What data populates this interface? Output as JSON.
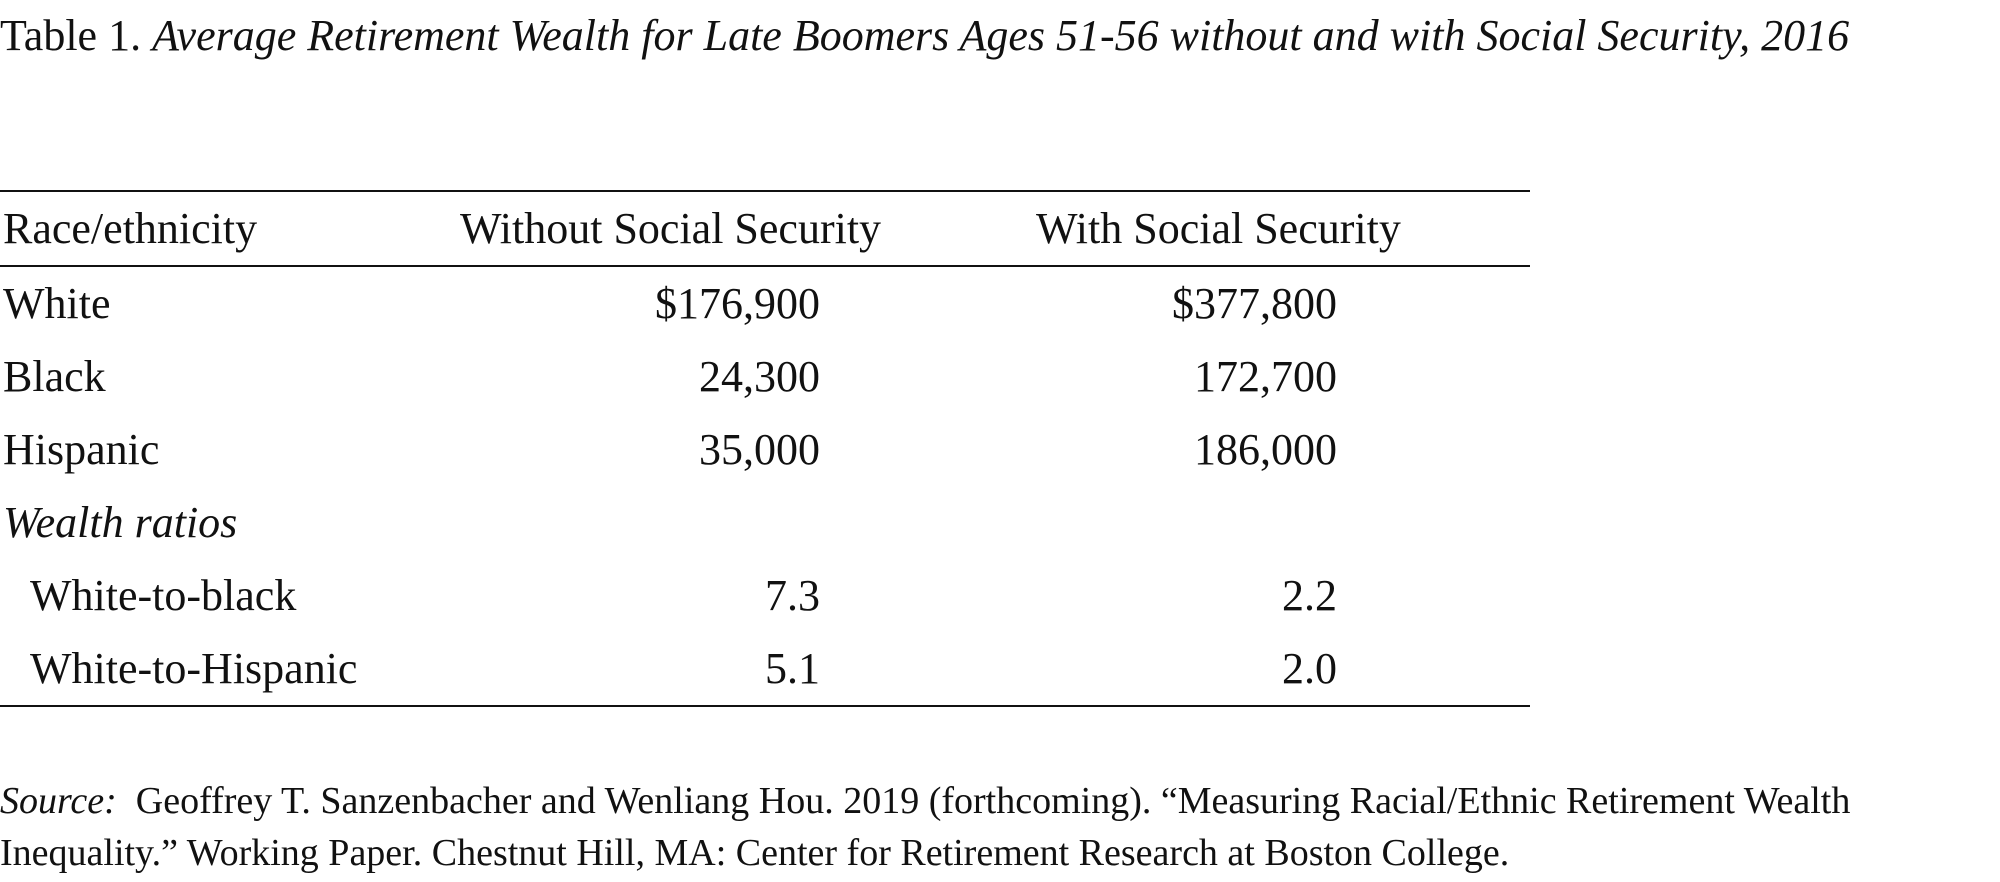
{
  "title": {
    "lead": "Table 1. ",
    "rest": "Average Retirement Wealth for Late Boomers Ages 51-56 without and with Social Security, 2016"
  },
  "table": {
    "headers": [
      "Race/ethnicity",
      "Without Social Security",
      "With Social Security"
    ],
    "rows": [
      {
        "label": "White",
        "without": "$176,900",
        "with": "$377,800"
      },
      {
        "label": "Black",
        "without": "24,300",
        "with": "172,700"
      },
      {
        "label": "Hispanic",
        "without": "35,000",
        "with": "186,000"
      }
    ],
    "section_label": "Wealth ratios",
    "ratio_rows": [
      {
        "label": "White-to-black",
        "without": "7.3",
        "with": "2.2"
      },
      {
        "label": "White-to-Hispanic",
        "without": "5.1",
        "with": "2.0"
      }
    ]
  },
  "source": {
    "label": "Source:",
    "text": "Geoffrey T. Sanzenbacher and Wenliang Hou. 2019 (forthcoming). “Measuring Racial/Ethnic Retirement Wealth Inequality.” Working Paper. Chestnut Hill, MA: Center for Retirement Research at Boston College."
  }
}
